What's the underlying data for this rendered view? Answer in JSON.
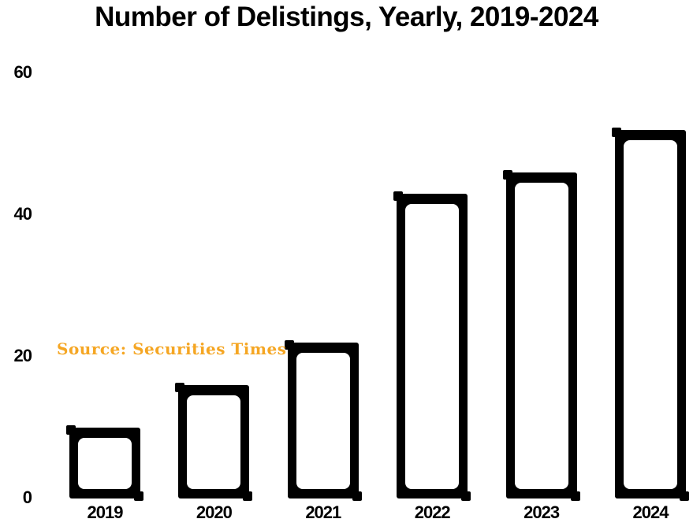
{
  "title": "Number of Delistings, Yearly, 2019-2024",
  "source_note": "Source: Securities Times",
  "colors": {
    "background": "#ffffff",
    "bar_border": "#000000",
    "bar_fill": "#ffffff",
    "text": "#000000",
    "source_text": "#f5a623"
  },
  "chart_data": {
    "type": "bar",
    "title": "Number of Delistings, Yearly, 2019-2024",
    "categories": [
      "2019",
      "2020",
      "2021",
      "2022",
      "2023",
      "2024"
    ],
    "values": [
      10,
      16,
      22,
      43,
      46,
      52
    ],
    "xlabel": "",
    "ylabel": "",
    "ylim": [
      0,
      60
    ],
    "yticks": [
      0,
      20,
      40,
      60
    ],
    "grid": false,
    "legend": false,
    "bar_style": "white fill with thick black hand-drawn outline",
    "annotation": "Source: Securities Times"
  }
}
